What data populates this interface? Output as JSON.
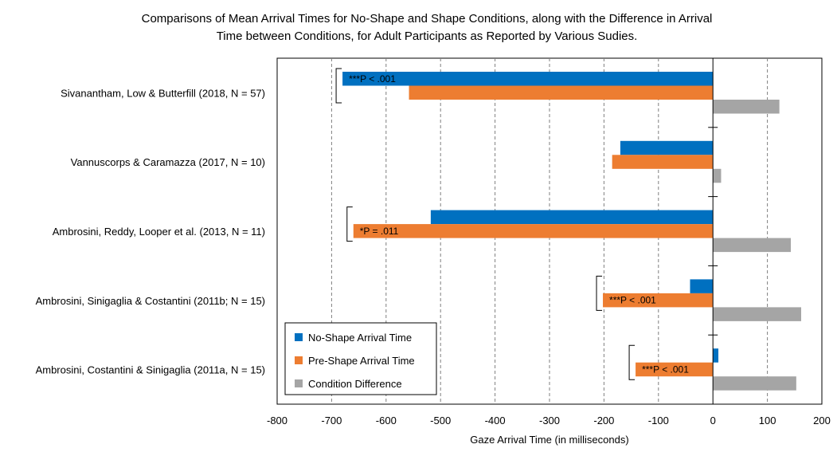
{
  "chart_data": {
    "type": "bar",
    "orientation": "horizontal",
    "title": "Comparisons of Mean Arrival Times for No-Shape and Shape Conditions, along with the Difference in Arrival Time between Conditions, for Adult Participants as Reported by Various Sudies.",
    "title_lines": [
      "Comparisons of Mean Arrival Times for No-Shape and Shape Conditions, along with the Difference in Arrival",
      "Time between Conditions, for Adult Participants as Reported by Various Sudies."
    ],
    "xlabel": "Gaze Arrival Time (in milliseconds)",
    "ylabel": "",
    "xlim": [
      -800,
      200
    ],
    "xticks": [
      -800,
      -700,
      -600,
      -500,
      -400,
      -300,
      -200,
      -100,
      0,
      100,
      200
    ],
    "grid": "vertical dashed",
    "legend_position": "bottom-left",
    "categories": [
      "Sivanantham, Low & Butterfill (2018, N = 57)",
      "Vannuscorps & Caramazza (2017, N = 10)",
      "Ambrosini, Reddy, Looper et al. (2013, N = 11)",
      "Ambrosini, Sinigaglia & Costantini (2011b; N = 15)",
      "Ambrosini, Costantini & Sinigaglia (2011a, N = 15)"
    ],
    "series": [
      {
        "name": "No-Shape Arrival Time",
        "color": "#0070C0",
        "values": [
          -680,
          -170,
          -518,
          -42,
          10
        ]
      },
      {
        "name": "Pre-Shape Arrival Time",
        "color": "#ED7D31",
        "values": [
          -558,
          -185,
          -660,
          -202,
          -142
        ]
      },
      {
        "name": "Condition Difference",
        "color": "#A5A5A5",
        "values": [
          122,
          15,
          143,
          162,
          153
        ]
      }
    ],
    "annotations": [
      {
        "category_index": 0,
        "text": "***P < .001",
        "row": 0
      },
      {
        "category_index": 2,
        "text": "*P = .011",
        "row": 1
      },
      {
        "category_index": 3,
        "text": "***P < .001",
        "row": 1
      },
      {
        "category_index": 4,
        "text": "***P < .001",
        "row": 1
      }
    ]
  }
}
